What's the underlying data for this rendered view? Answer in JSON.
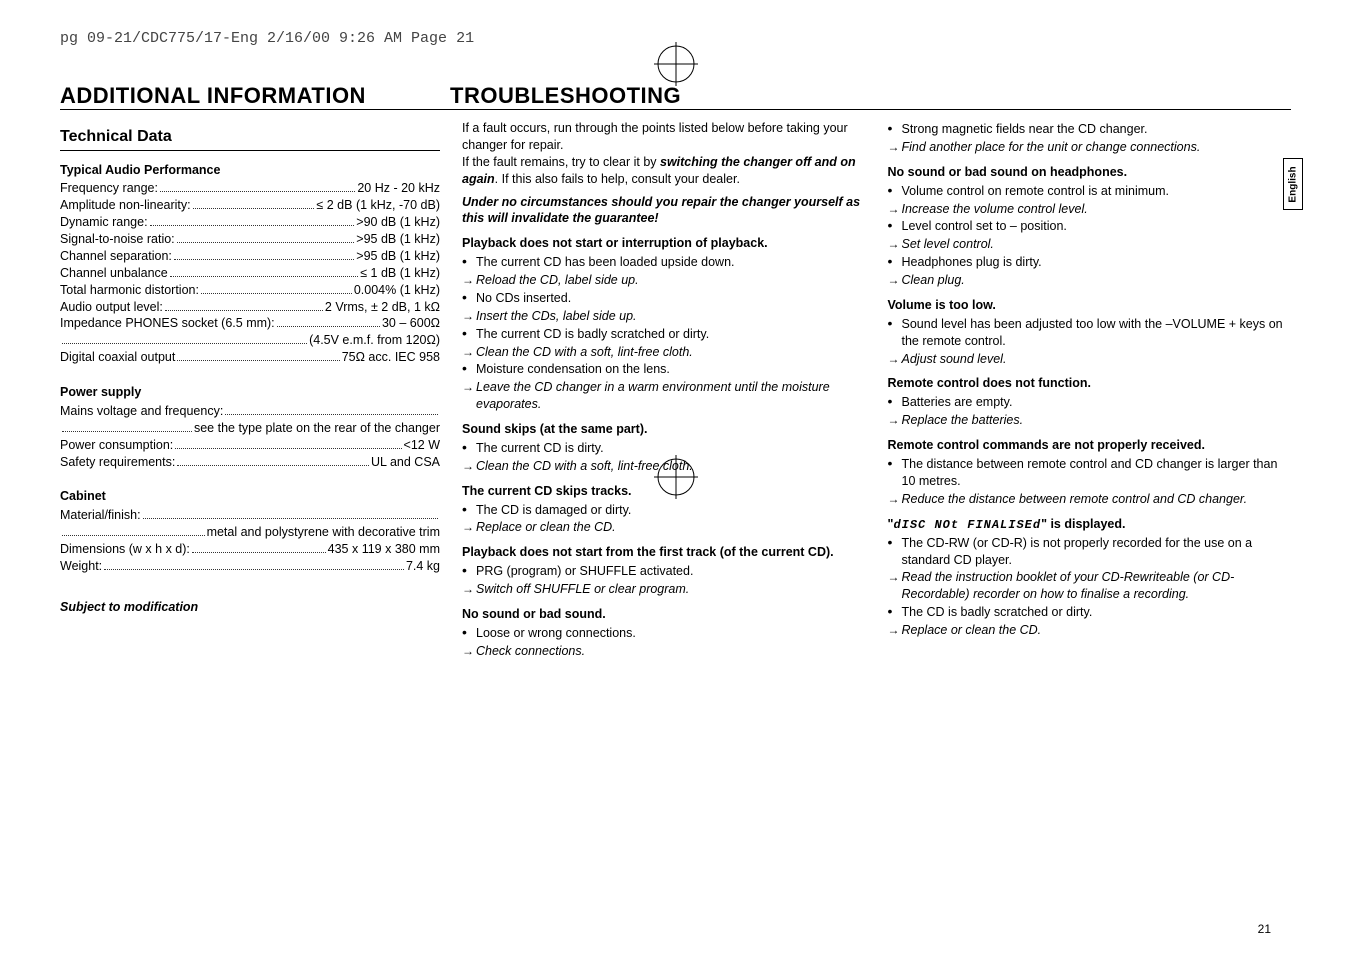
{
  "meta_header": "pg 09-21/CDC775/17-Eng  2/16/00  9:26 AM  Page 21",
  "heading_left": "ADDITIONAL INFORMATION",
  "heading_right": "TROUBLESHOOTING",
  "technical_data_title": "Technical Data",
  "audio_perf_title": "Typical Audio Performance",
  "specs_audio": [
    {
      "label": "Frequency range:",
      "value": "20 Hz - 20 kHz"
    },
    {
      "label": "Amplitude non-linearity:",
      "value": "≤ 2 dB (1 kHz, -70 dB)"
    },
    {
      "label": "Dynamic range:",
      "value": ">90 dB (1 kHz)"
    },
    {
      "label": "Signal-to-noise ratio:",
      "value": ">95 dB (1 kHz)"
    },
    {
      "label": "Channel separation:",
      "value": ">95 dB (1 kHz)"
    },
    {
      "label": "Channel unbalance",
      "value": "≤ 1 dB (1 kHz)"
    },
    {
      "label": "Total harmonic distortion:",
      "value": "0.004% (1 kHz)"
    },
    {
      "label": "Audio output level:",
      "value": "2 Vrms, ± 2 dB, 1 kΩ"
    },
    {
      "label": "Impedance PHONES socket (6.5 mm):",
      "value": "30 – 600Ω"
    },
    {
      "label": "",
      "value": "(4.5V e.m.f. from 120Ω)"
    },
    {
      "label": "Digital coaxial output",
      "value": "75Ω acc. IEC 958"
    }
  ],
  "power_title": "Power supply",
  "specs_power": [
    {
      "label": "Mains voltage and frequency:",
      "value": ""
    },
    {
      "label": "",
      "value": "see the type plate on the rear of the changer"
    },
    {
      "label": "Power consumption:",
      "value": "<12 W"
    },
    {
      "label": "Safety requirements:",
      "value": "UL and CSA"
    }
  ],
  "cabinet_title": "Cabinet",
  "specs_cabinet": [
    {
      "label": "Material/finish:",
      "value": ""
    },
    {
      "label": "",
      "value": "metal and polystyrene with decorative trim"
    },
    {
      "label": "Dimensions (w x h x d):",
      "value": "435 x 119 x 380 mm"
    },
    {
      "label": "Weight:",
      "value": "7.4 kg"
    }
  ],
  "subject_mod": "Subject to modification",
  "col2_intro1": "If a fault occurs, run through the points listed below before taking your changer for repair.",
  "col2_intro2a": "If the fault remains, try to clear it by ",
  "col2_intro2b": "switching the changer off and on again",
  "col2_intro2c": ". If this also fails to help, consult your dealer.",
  "col2_warn": "Under no circumstances should you repair the changer yourself as this will invalidate the guarantee!",
  "t1_h": "Playback does not start or interruption of playback.",
  "t1": [
    {
      "t": "bullet",
      "txt": "The current CD has been loaded upside down."
    },
    {
      "t": "arrow",
      "txt": "Reload the CD, label side up.",
      "em": true
    },
    {
      "t": "bullet",
      "txt": "No CDs inserted."
    },
    {
      "t": "arrow",
      "txt": "Insert the CDs, label side up.",
      "em": true
    },
    {
      "t": "bullet",
      "txt": "The current CD is badly scratched or dirty."
    },
    {
      "t": "arrow",
      "txt": "Clean the CD with a soft, lint-free cloth.",
      "em": true
    },
    {
      "t": "bullet",
      "txt": "Moisture condensation on the lens."
    },
    {
      "t": "arrow",
      "txt": "Leave the CD changer in a warm environment until the moisture evaporates.",
      "em": true
    }
  ],
  "t2_h": "Sound skips (at the same part).",
  "t2": [
    {
      "t": "bullet",
      "txt": "The current CD is dirty."
    },
    {
      "t": "arrow",
      "txt": "Clean the CD with a soft, lint-free cloth.",
      "em": true
    }
  ],
  "t3_h": "The current CD skips tracks.",
  "t3": [
    {
      "t": "bullet",
      "txt": "The CD is damaged or dirty."
    },
    {
      "t": "arrow",
      "txt": "Replace or clean the CD.",
      "em": true
    }
  ],
  "t4_h": "Playback does not start from the first track (of the current CD).",
  "t4": [
    {
      "t": "bullet",
      "txt": "PRG (program) or SHUFFLE activated."
    },
    {
      "t": "arrow",
      "txt": "Switch off SHUFFLE or clear program.",
      "em": true
    }
  ],
  "t5_h": "No sound or bad sound.",
  "t5": [
    {
      "t": "bullet",
      "txt": "Loose or wrong connections."
    },
    {
      "t": "arrow",
      "txt": "Check connections.",
      "em": true
    }
  ],
  "c3_pre": [
    {
      "t": "bullet",
      "txt": "Strong magnetic fields near the CD changer."
    },
    {
      "t": "arrow",
      "txt": "Find another place for the unit or change connections.",
      "em": true
    }
  ],
  "c3a_h": "No sound or bad sound on headphones.",
  "c3a": [
    {
      "t": "bullet",
      "txt": "Volume control on remote control is at minimum."
    },
    {
      "t": "arrow",
      "txt": "Increase the volume control level.",
      "em": true
    },
    {
      "t": "bullet",
      "txt": "Level control set to – position."
    },
    {
      "t": "arrow",
      "txt": "Set level control.",
      "em": true
    },
    {
      "t": "bullet",
      "txt": "Headphones plug is dirty."
    },
    {
      "t": "arrow",
      "txt": "Clean plug.",
      "em": true
    }
  ],
  "c3b_h": "Volume is too low.",
  "c3b": [
    {
      "t": "bullet",
      "txt": "Sound level has been adjusted too low with the –VOLUME + keys on the remote control."
    },
    {
      "t": "arrow",
      "txt": "Adjust sound level.",
      "em": true
    }
  ],
  "c3c_h": "Remote control does not function.",
  "c3c": [
    {
      "t": "bullet",
      "txt": "Batteries are empty."
    },
    {
      "t": "arrow",
      "txt": "Replace the batteries.",
      "em": true
    }
  ],
  "c3d_h": "Remote control commands are not properly received.",
  "c3d": [
    {
      "t": "bullet",
      "txt": "The distance between remote control and CD changer is larger than 10 metres."
    },
    {
      "t": "arrow",
      "txt": "Reduce the distance between remote control and CD changer.",
      "em": true
    }
  ],
  "c3e_pre": "\"",
  "c3e_seg": "dISC NOt FINALISEd",
  "c3e_post": "\" is displayed.",
  "c3e": [
    {
      "t": "bullet",
      "txt": "The CD-RW (or CD-R) is not properly recorded for the use on a standard CD player."
    },
    {
      "t": "arrow",
      "txt": "Read the instruction booklet of your CD-Rewriteable (or CD-Recordable) recorder on how to finalise a recording.",
      "em": true
    },
    {
      "t": "bullet",
      "txt": "The CD is badly scratched or dirty."
    },
    {
      "t": "arrow",
      "txt": "Replace or clean the CD.",
      "em": true
    }
  ],
  "page_num": "21",
  "side_tab": "English"
}
